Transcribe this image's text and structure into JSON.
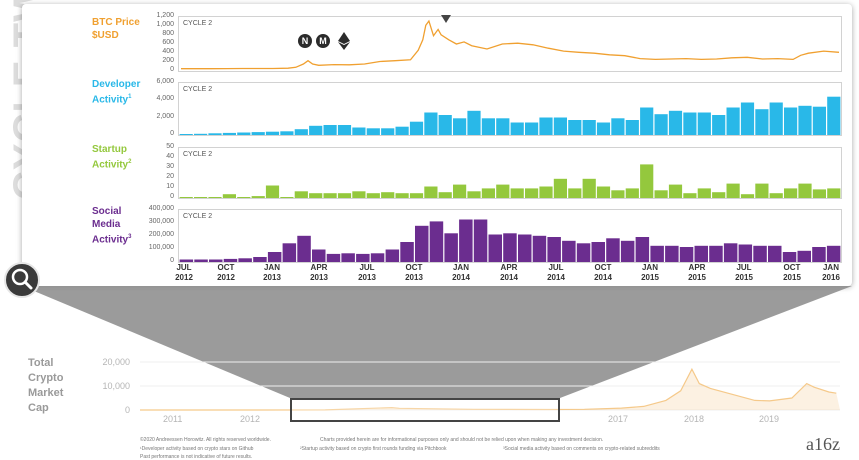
{
  "side_label": "CYCLE TWO",
  "cycle_tag": "CYCLE 2",
  "x_axis_labels": [
    {
      "month": "JUL",
      "year": "2012"
    },
    {
      "month": "OCT",
      "year": "2012"
    },
    {
      "month": "JAN",
      "year": "2013"
    },
    {
      "month": "APR",
      "year": "2013"
    },
    {
      "month": "JUL",
      "year": "2013"
    },
    {
      "month": "OCT",
      "year": "2013"
    },
    {
      "month": "JAN",
      "year": "2014"
    },
    {
      "month": "APR",
      "year": "2014"
    },
    {
      "month": "JUL",
      "year": "2014"
    },
    {
      "month": "OCT",
      "year": "2014"
    },
    {
      "month": "JAN",
      "year": "2015"
    },
    {
      "month": "APR",
      "year": "2015"
    },
    {
      "month": "JUL",
      "year": "2015"
    },
    {
      "month": "OCT",
      "year": "2015"
    },
    {
      "month": "JAN",
      "year": "2016"
    }
  ],
  "coin_icons": [
    "N",
    "M"
  ],
  "colors": {
    "btc": "#f0a030",
    "dev": "#29b8e8",
    "startup": "#94c83d",
    "social": "#6b2d8f",
    "market": "#f5c98a"
  },
  "chart_data": [
    {
      "type": "line",
      "id": "btc",
      "title_lines": [
        "BTC Price",
        "$USD"
      ],
      "y_ticks": [
        "1,200",
        "1,000",
        "800",
        "600",
        "400",
        "200",
        "0"
      ],
      "ylim": [
        0,
        1200
      ],
      "x_start": "2012-07",
      "x_end": "2016-02",
      "points": [
        [
          0,
          7
        ],
        [
          2,
          8
        ],
        [
          3,
          10
        ],
        [
          4,
          11
        ],
        [
          5,
          12
        ],
        [
          6,
          13
        ],
        [
          7,
          20
        ],
        [
          7.5,
          40
        ],
        [
          8,
          120
        ],
        [
          8.3,
          200
        ],
        [
          8.6,
          120
        ],
        [
          9,
          90
        ],
        [
          10,
          105
        ],
        [
          11,
          100
        ],
        [
          12,
          120
        ],
        [
          13,
          180
        ],
        [
          14,
          200
        ],
        [
          15,
          220
        ],
        [
          15.5,
          450
        ],
        [
          15.8,
          700
        ],
        [
          16,
          1050
        ],
        [
          16.2,
          1150
        ],
        [
          16.5,
          800
        ],
        [
          16.8,
          950
        ],
        [
          17,
          820
        ],
        [
          17.5,
          700
        ],
        [
          18,
          600
        ],
        [
          18.5,
          650
        ],
        [
          19,
          560
        ],
        [
          20,
          480
        ],
        [
          21,
          600
        ],
        [
          22,
          620
        ],
        [
          23,
          580
        ],
        [
          24,
          500
        ],
        [
          25,
          430
        ],
        [
          26,
          400
        ],
        [
          27,
          380
        ],
        [
          28,
          340
        ],
        [
          29,
          320
        ],
        [
          30,
          250
        ],
        [
          31,
          230
        ],
        [
          32,
          240
        ],
        [
          33,
          250
        ],
        [
          34,
          230
        ],
        [
          35,
          240
        ],
        [
          36,
          270
        ],
        [
          37,
          280
        ],
        [
          38,
          240
        ],
        [
          39,
          250
        ],
        [
          40,
          230
        ],
        [
          40.5,
          330
        ],
        [
          41,
          380
        ],
        [
          42,
          430
        ],
        [
          43,
          400
        ]
      ]
    },
    {
      "type": "bar",
      "id": "dev",
      "title_lines": [
        "Developer",
        "Activity"
      ],
      "title_sup": "1",
      "y_ticks": [
        "6,000",
        "4,000",
        "2,000",
        "0"
      ],
      "ylim": [
        0,
        6000
      ],
      "values": [
        100,
        150,
        200,
        250,
        300,
        350,
        400,
        450,
        700,
        1100,
        1200,
        1200,
        900,
        800,
        800,
        1000,
        1600,
        2700,
        2400,
        2000,
        2900,
        2000,
        2000,
        1500,
        1500,
        2100,
        2100,
        1800,
        1800,
        1500,
        2000,
        1800,
        3300,
        2500,
        2900,
        2700,
        2700,
        2400,
        3300,
        3900,
        3100,
        3900,
        3300,
        3500,
        3400,
        4600
      ]
    },
    {
      "type": "bar",
      "id": "startup",
      "title_lines": [
        "Startup",
        "Activity"
      ],
      "title_sup": "2",
      "y_ticks": [
        "50",
        "40",
        "30",
        "20",
        "10",
        "0"
      ],
      "ylim": [
        0,
        50
      ],
      "values": [
        0,
        0,
        0,
        4,
        1,
        2,
        13,
        1,
        7,
        5,
        5,
        5,
        7,
        5,
        6,
        5,
        5,
        12,
        6,
        14,
        7,
        10,
        14,
        10,
        10,
        12,
        20,
        10,
        20,
        12,
        8,
        10,
        35,
        8,
        14,
        5,
        10,
        6,
        15,
        4,
        15,
        5,
        10,
        15,
        9,
        10
      ]
    },
    {
      "type": "bar",
      "id": "social",
      "title_lines": [
        "Social",
        "Media",
        "Activity"
      ],
      "title_sup": "3",
      "y_ticks": [
        "400,000",
        "300,000",
        "200,000",
        "100,000",
        "0"
      ],
      "ylim": [
        0,
        400000
      ],
      "values": [
        20000,
        20000,
        20000,
        25000,
        30000,
        40000,
        80000,
        150000,
        210000,
        100000,
        65000,
        70000,
        65000,
        70000,
        100000,
        160000,
        290000,
        325000,
        230000,
        340000,
        340000,
        220000,
        230000,
        220000,
        210000,
        200000,
        170000,
        150000,
        160000,
        190000,
        170000,
        200000,
        130000,
        130000,
        120000,
        130000,
        130000,
        150000,
        140000,
        130000,
        130000,
        80000,
        90000,
        120000,
        130000
      ]
    },
    {
      "type": "area",
      "id": "market_cap",
      "title_lines": [
        "Total",
        "Crypto",
        "Market",
        "Cap"
      ],
      "y_ticks": [
        "20,000",
        "10,000",
        "0"
      ],
      "ylim": [
        0,
        20000
      ],
      "x_tick_labels": [
        "2011",
        "2012",
        "2017",
        "2018",
        "2019"
      ],
      "points": [
        [
          2010.5,
          0
        ],
        [
          2011,
          0
        ],
        [
          2012,
          0
        ],
        [
          2013,
          50
        ],
        [
          2013.9,
          1000
        ],
        [
          2014,
          700
        ],
        [
          2015,
          300
        ],
        [
          2016,
          200
        ],
        [
          2016.5,
          300
        ],
        [
          2017,
          800
        ],
        [
          2017.3,
          1500
        ],
        [
          2017.6,
          4000
        ],
        [
          2017.8,
          8000
        ],
        [
          2017.95,
          17000
        ],
        [
          2018.05,
          11000
        ],
        [
          2018.2,
          9000
        ],
        [
          2018.5,
          6500
        ],
        [
          2018.8,
          4000
        ],
        [
          2019,
          3800
        ],
        [
          2019.3,
          5000
        ],
        [
          2019.5,
          11000
        ],
        [
          2019.6,
          9500
        ],
        [
          2019.8,
          7500
        ],
        [
          2019.9,
          7000
        ]
      ]
    }
  ],
  "footnotes": [
    "©2020 Andreessen Horowitz. All rights reserved worldwide.",
    "Charts provided herein are for informational purposes only and should not be relied upon when making any investment decision.",
    "¹Developer activity based on crypto stars on Github",
    "²Startup activity based on crypto first rounds funding via Pitchbook",
    "³Social media activity based on comments on crypto-related subreddits",
    "Past performance is not indicative of future results."
  ],
  "brand": "a16z"
}
